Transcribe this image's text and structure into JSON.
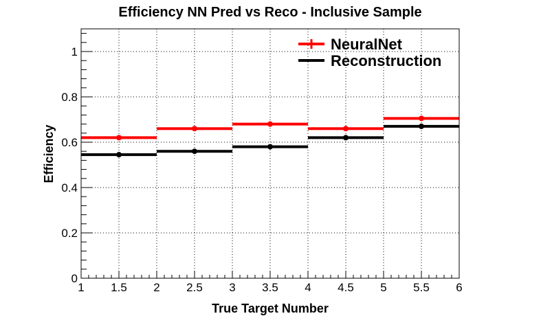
{
  "chart_data": {
    "type": "step",
    "title": "Efficiency NN Pred vs Reco - Inclusive Sample",
    "xlabel": "True Target Number",
    "ylabel": "Efficiency",
    "xlim": [
      1,
      6
    ],
    "ylim": [
      0,
      1.1
    ],
    "x_ticks": [
      "1",
      "1.5",
      "2",
      "2.5",
      "3",
      "3.5",
      "4",
      "4.5",
      "5",
      "5.5",
      "6"
    ],
    "y_ticks": [
      "0",
      "0.2",
      "0.4",
      "0.6",
      "0.8",
      "1"
    ],
    "grid": true,
    "legend_position": "top-right",
    "bins": [
      [
        1,
        2
      ],
      [
        2,
        3
      ],
      [
        3,
        4
      ],
      [
        4,
        5
      ],
      [
        5,
        6
      ]
    ],
    "x": [
      1.5,
      2.5,
      3.5,
      4.5,
      5.5
    ],
    "series": [
      {
        "name": "NeuralNet",
        "color": "#ff0000",
        "values": [
          0.62,
          0.66,
          0.68,
          0.66,
          0.705
        ]
      },
      {
        "name": "Reconstruction",
        "color": "#000000",
        "values": [
          0.545,
          0.56,
          0.58,
          0.62,
          0.67
        ]
      }
    ]
  }
}
